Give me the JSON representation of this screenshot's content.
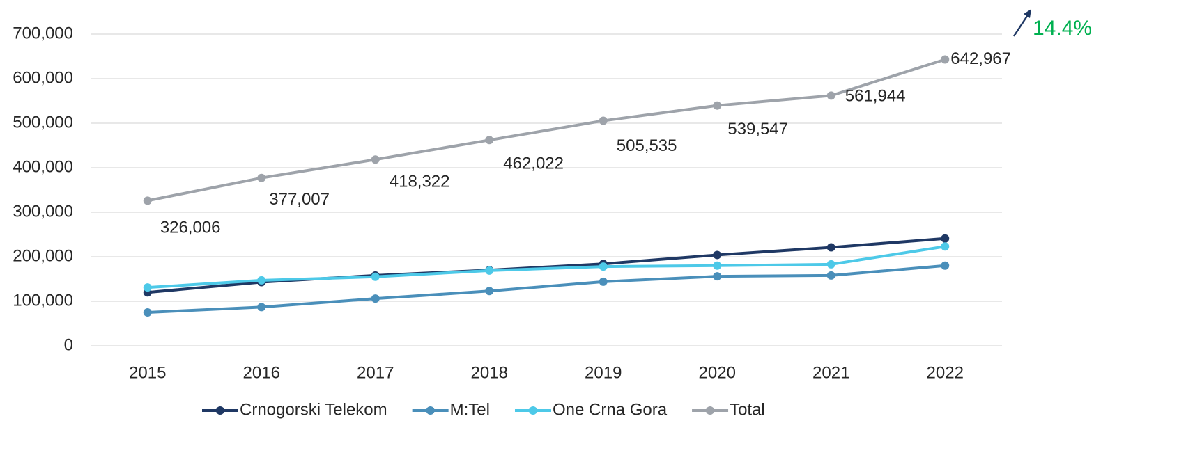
{
  "chart_data": {
    "type": "line",
    "categories": [
      "2015",
      "2016",
      "2017",
      "2018",
      "2019",
      "2020",
      "2021",
      "2022"
    ],
    "series": [
      {
        "name": "Crnogorski Telekom",
        "color": "#1f3864",
        "values": [
          120000,
          143000,
          158000,
          170000,
          184000,
          204000,
          221000,
          241000
        ]
      },
      {
        "name": "M:Tel",
        "color": "#4a8fba",
        "values": [
          75000,
          87000,
          106000,
          123000,
          144000,
          156000,
          158000,
          180000
        ]
      },
      {
        "name": "One Crna Gora",
        "color": "#4dc9e8",
        "values": [
          131000,
          147000,
          155000,
          169000,
          178000,
          180000,
          183000,
          223000
        ]
      },
      {
        "name": "Total",
        "color": "#9ea3aa",
        "values": [
          326006,
          377007,
          418322,
          462022,
          505535,
          539547,
          561944,
          642967
        ],
        "value_labels": [
          "326,006",
          "377,007",
          "418,322",
          "462,022",
          "505,535",
          "539,547",
          "561,944",
          "642,967"
        ]
      }
    ],
    "ylim": [
      0,
      700000
    ],
    "yticks": [
      0,
      {
        "value": 100000,
        "label": "100,000"
      },
      {
        "value": 200000,
        "label": "200,000"
      },
      {
        "value": 300000,
        "label": "300,000"
      },
      {
        "value": 400000,
        "label": "400,000"
      },
      {
        "value": 500000,
        "label": "500,000"
      },
      {
        "value": 600000,
        "label": "600,000"
      },
      {
        "value": 700000,
        "label": "700,000"
      }
    ],
    "grid": true,
    "legend": "bottom",
    "annotation": {
      "text": "14.4%",
      "color": "#00b050"
    }
  }
}
